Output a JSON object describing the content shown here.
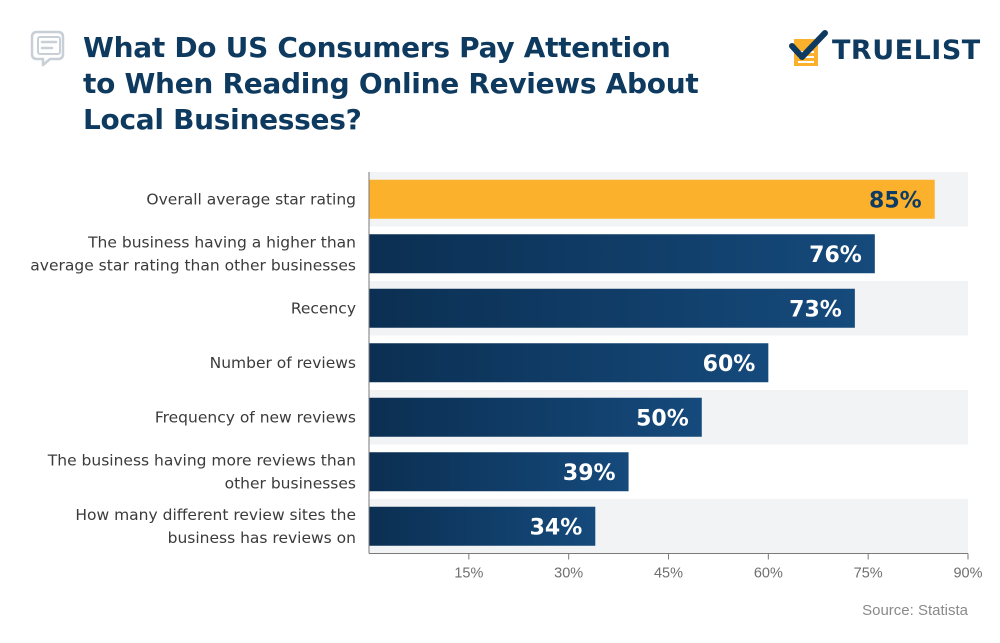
{
  "header": {
    "title_line1": "What Do US Consumers Pay Attention",
    "title_line2": "to When Reading Online Reviews About",
    "title_line3": "Local Businesses?",
    "title_icon": "chat-document-icon",
    "logo_text": "TRUELIST",
    "logo_icon": "checkmark-clipboard-icon"
  },
  "footer": {
    "source": "Source: Statista"
  },
  "colors": {
    "highlight": "#fbb12b",
    "bar": "#0e3b63",
    "title": "#0f3a5f",
    "band": "#f2f3f4",
    "label": "#3b3b3b",
    "tick": "#6f6f6f"
  },
  "chart_data": {
    "type": "bar",
    "orientation": "horizontal",
    "categories": [
      [
        "Overall average star rating"
      ],
      [
        "The business having a higher than",
        "average star rating than other businesses"
      ],
      [
        "Recency"
      ],
      [
        "Number of reviews"
      ],
      [
        "Frequency of new reviews"
      ],
      [
        "The business having more reviews than",
        "other businesses"
      ],
      [
        "How many different review sites the",
        "business has reviews on"
      ]
    ],
    "values": [
      85,
      76,
      73,
      60,
      50,
      39,
      34
    ],
    "value_labels": [
      "85%",
      "76%",
      "73%",
      "60%",
      "50%",
      "39%",
      "34%"
    ],
    "xlim": [
      0,
      90
    ],
    "xticks": [
      15,
      30,
      45,
      60,
      75,
      90
    ],
    "xtick_labels": [
      "15%",
      "30%",
      "45%",
      "60%",
      "75%",
      "90%"
    ],
    "highlighted_index": 0,
    "grid": false,
    "legend": "none"
  }
}
